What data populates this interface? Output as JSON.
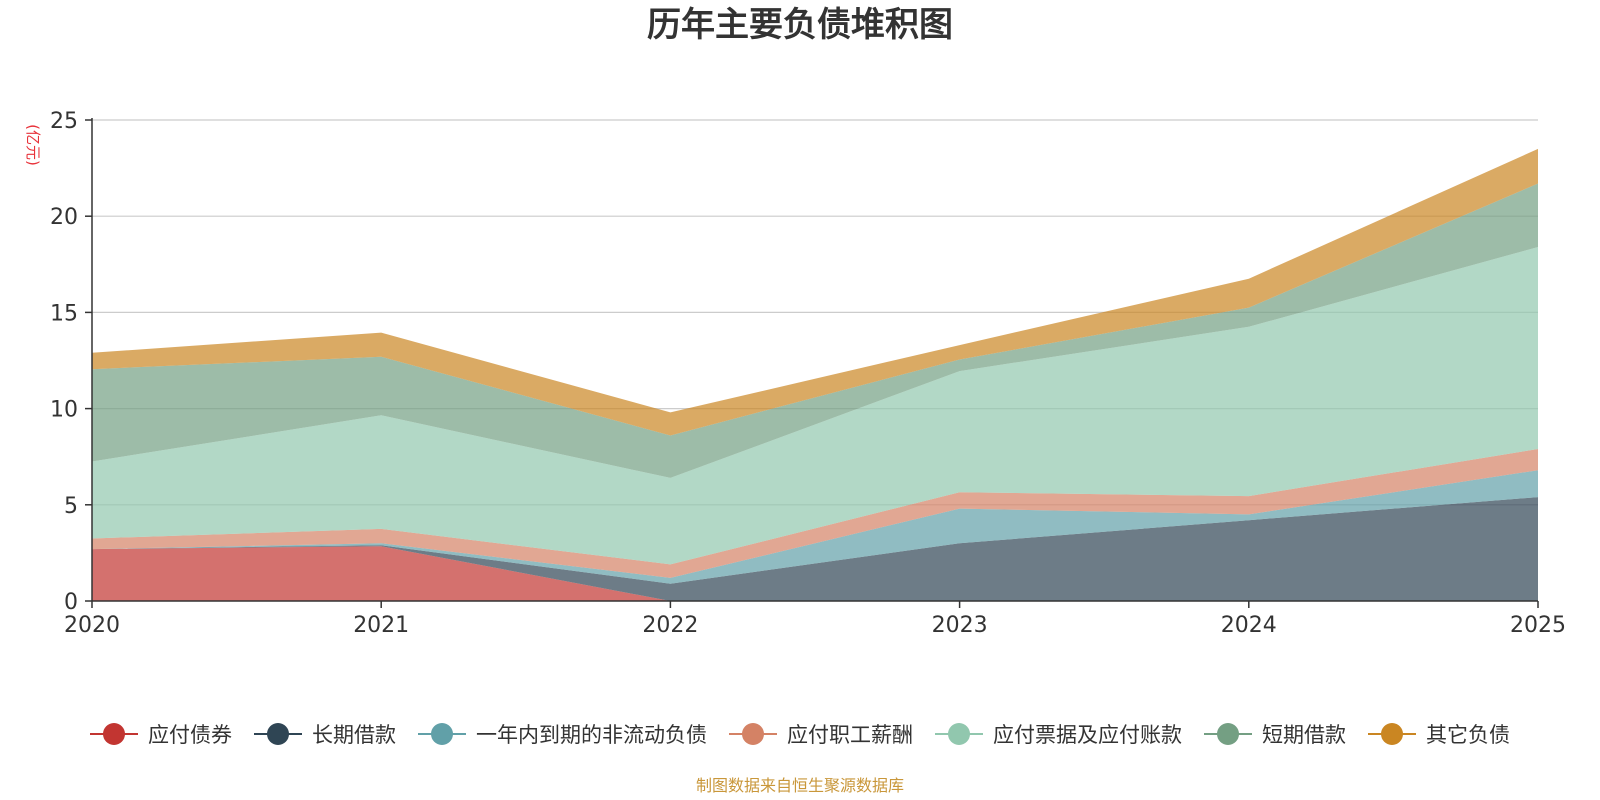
{
  "chart_data": {
    "type": "area",
    "stacked": true,
    "title": "历年主要负债堆积图",
    "unit_label": "(亿元)",
    "x": [
      "2020",
      "2021",
      "2022",
      "2023",
      "2024",
      "2025"
    ],
    "ylim": [
      0,
      25
    ],
    "yticks": [
      0,
      5,
      10,
      15,
      20,
      25
    ],
    "grid": true,
    "legend_position": "bottom",
    "series": [
      {
        "name": "应付债券",
        "color": "#c23531",
        "values": [
          2.7,
          2.85,
          0,
          0,
          0,
          0
        ]
      },
      {
        "name": "长期借款",
        "color": "#2f4554",
        "values": [
          0,
          0.05,
          0.9,
          3.0,
          4.2,
          5.4
        ]
      },
      {
        "name": "一年内到期的非流动负债",
        "color": "#61a0a8",
        "values": [
          0,
          0.1,
          0.3,
          1.8,
          0.3,
          1.4
        ]
      },
      {
        "name": "应付职工薪酬",
        "color": "#d48265",
        "values": [
          0.55,
          0.75,
          0.7,
          0.85,
          0.95,
          1.1
        ]
      },
      {
        "name": "应付票据及应付账款",
        "color": "#91c7ae",
        "values": [
          4.0,
          5.9,
          4.5,
          6.3,
          8.8,
          10.5
        ]
      },
      {
        "name": "短期借款",
        "color": "#749f83",
        "values": [
          4.8,
          3.05,
          2.2,
          0.6,
          1.0,
          3.3
        ]
      },
      {
        "name": "其它负债",
        "color": "#ca8622",
        "values": [
          0.85,
          1.25,
          1.2,
          0.75,
          1.5,
          1.8
        ]
      }
    ],
    "source": "制图数据来自恒生聚源数据库"
  }
}
